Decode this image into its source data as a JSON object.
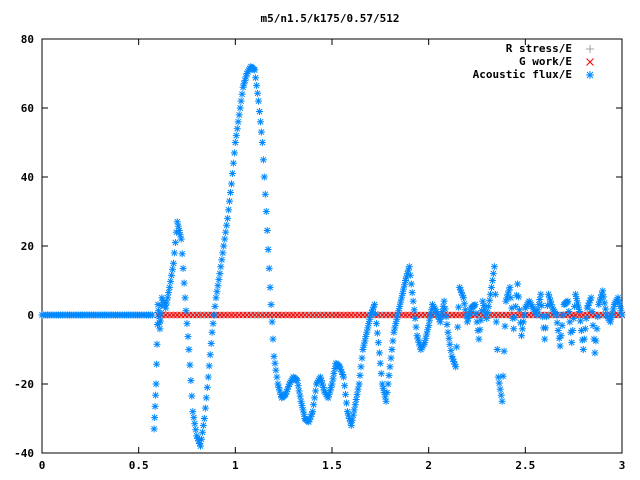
{
  "chart_data": {
    "type": "scatter",
    "title": "m5/n1.5/k175/0.57/512",
    "xlabel": "",
    "ylabel": "",
    "xlim": [
      0,
      3
    ],
    "ylim": [
      -40,
      80
    ],
    "x_ticks": [
      0,
      0.5,
      1,
      1.5,
      2,
      2.5,
      3
    ],
    "x_tick_labels": [
      "0",
      "0.5",
      "1",
      "1.5",
      "2",
      "2.5",
      "3"
    ],
    "y_ticks": [
      -40,
      -20,
      0,
      20,
      40,
      60,
      80
    ],
    "y_tick_labels": [
      "-40",
      "-20",
      "0",
      "20",
      "40",
      "60",
      "80"
    ],
    "grid": false,
    "legend_position": "top-right",
    "series": [
      {
        "name": "R stress/E",
        "marker": "plus",
        "color": "#a0a0a0",
        "x_range": [
          0.6,
          3.0
        ],
        "y_constant": 0
      },
      {
        "name": "G work/E",
        "marker": "cross",
        "color": "#ff0000",
        "x_range": [
          0.6,
          3.0
        ],
        "y_constant": 0
      },
      {
        "name": "Acoustic flux/E",
        "marker": "star",
        "color": "#0088ff",
        "flat_x_range": [
          0,
          0.57
        ],
        "x": [
          0.58,
          0.59,
          0.6,
          0.61,
          0.62,
          0.64,
          0.66,
          0.68,
          0.7,
          0.72,
          0.74,
          0.76,
          0.78,
          0.8,
          0.82,
          0.84,
          0.86,
          0.88,
          0.9,
          0.92,
          0.94,
          0.96,
          0.98,
          1.0,
          1.02,
          1.04,
          1.06,
          1.08,
          1.1,
          1.12,
          1.14,
          1.16,
          1.18,
          1.2,
          1.22,
          1.24,
          1.26,
          1.28,
          1.3,
          1.32,
          1.34,
          1.36,
          1.38,
          1.4,
          1.42,
          1.44,
          1.46,
          1.48,
          1.5,
          1.52,
          1.54,
          1.56,
          1.58,
          1.6,
          1.62,
          1.64,
          1.66,
          1.68,
          1.7,
          1.72,
          1.74,
          1.76,
          1.78,
          1.8,
          1.82,
          1.84,
          1.86,
          1.88,
          1.9,
          1.92,
          1.94,
          1.96,
          1.98,
          2.0,
          2.02,
          2.04,
          2.06,
          2.08,
          2.1,
          2.12,
          2.14,
          2.16,
          2.18,
          2.2,
          2.22,
          2.24,
          2.26,
          2.28,
          2.3,
          2.32,
          2.34,
          2.36,
          2.38,
          2.4,
          2.42,
          2.44,
          2.46,
          2.48,
          2.5,
          2.52,
          2.54,
          2.56,
          2.58,
          2.6,
          2.62,
          2.64,
          2.66,
          2.68,
          2.7,
          2.72,
          2.74,
          2.76,
          2.78,
          2.8,
          2.82,
          2.84,
          2.86,
          2.88,
          2.9,
          2.92,
          2.94,
          2.96,
          2.98,
          3.0
        ],
        "y": [
          -33,
          -20,
          3,
          -4,
          5,
          2,
          8,
          15,
          27,
          22,
          5,
          -10,
          -28,
          -35,
          -38,
          -30,
          -18,
          -5,
          5,
          12,
          20,
          28,
          38,
          50,
          58,
          66,
          70,
          72,
          71,
          62,
          50,
          30,
          8,
          -12,
          -20,
          -24,
          -23,
          -20,
          -18,
          -19,
          -25,
          -30,
          -31,
          -28,
          -20,
          -18,
          -22,
          -24,
          -20,
          -14,
          -15,
          -18,
          -28,
          -32,
          -26,
          -20,
          -10,
          -5,
          0,
          3,
          -8,
          -20,
          -25,
          -15,
          -5,
          0,
          5,
          10,
          14,
          4,
          -6,
          -10,
          -8,
          -3,
          3,
          1,
          -2,
          4,
          -5,
          -12,
          -15,
          8,
          5,
          -2,
          2,
          3,
          -7,
          4,
          -1,
          6,
          14,
          -18,
          -25,
          4,
          8,
          -4,
          9,
          -6,
          2,
          4,
          2,
          0,
          6,
          -7,
          6,
          2,
          0,
          -9,
          3,
          4,
          -8,
          6,
          1,
          -10,
          2,
          5,
          -11,
          3,
          7,
          0,
          -2,
          3,
          5,
          0
        ],
        "spread_x_range": [
          0.58,
          3.0
        ]
      }
    ]
  }
}
